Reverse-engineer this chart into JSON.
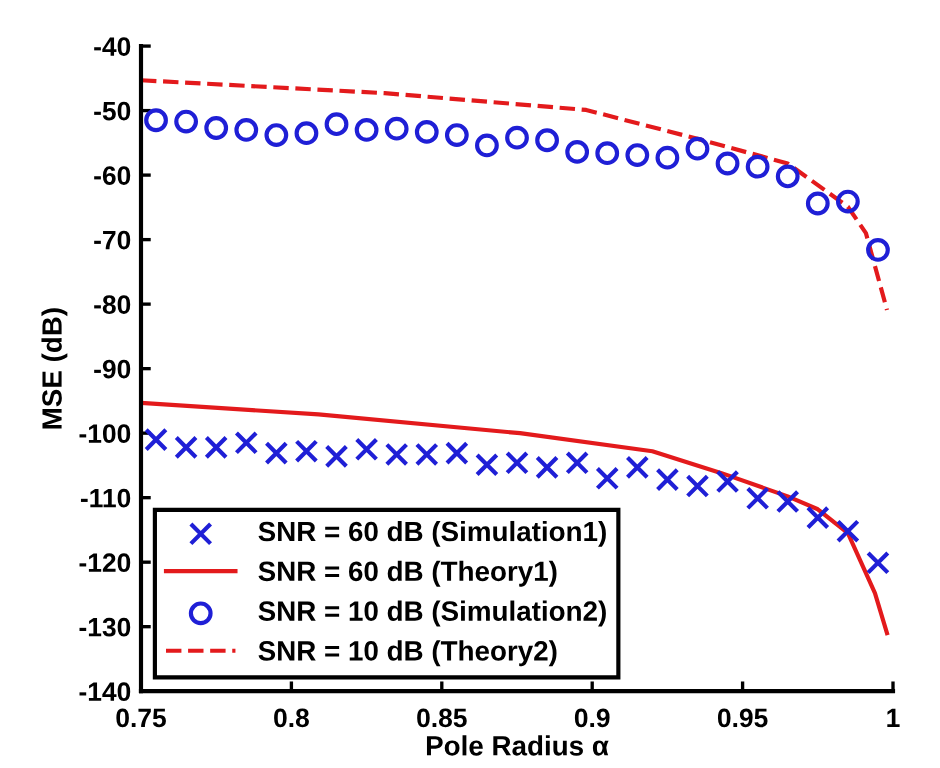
{
  "chart_data": {
    "type": "line",
    "xlabel": "Pole Radius α",
    "ylabel": "MSE (dB)",
    "xlim": [
      0.75,
      1
    ],
    "xticks": [
      0.75,
      0.8,
      0.85,
      0.9,
      0.95,
      1
    ],
    "ylim": [
      -140,
      -40
    ],
    "yticks": [
      -140,
      -130,
      -120,
      -110,
      -100,
      -90,
      -80,
      -70,
      -60,
      -50,
      -40
    ],
    "grid": false,
    "legend": "bottom left",
    "series": [
      {
        "name": "SNR = 60 dB (Simulation1)",
        "type": "scatter",
        "marker": "cross",
        "color": "#1f1fd6",
        "x": [
          0.755,
          0.765,
          0.775,
          0.785,
          0.795,
          0.805,
          0.815,
          0.825,
          0.835,
          0.845,
          0.855,
          0.865,
          0.875,
          0.885,
          0.895,
          0.905,
          0.915,
          0.925,
          0.935,
          0.945,
          0.955,
          0.965,
          0.975,
          0.985,
          0.995
        ],
        "values": [
          -101.0,
          -102.2,
          -102.2,
          -101.5,
          -103.1,
          -102.8,
          -103.6,
          -102.5,
          -103.3,
          -103.3,
          -103.1,
          -104.9,
          -104.6,
          -105.3,
          -104.6,
          -107.0,
          -105.3,
          -107.2,
          -108.2,
          -107.5,
          -110.1,
          -110.6,
          -113.1,
          -115.2,
          -120.1
        ]
      },
      {
        "name": "SNR = 60 dB (Theory1)",
        "line_style": "solid",
        "color": "#e31a1c",
        "x": [
          0.75,
          0.809,
          0.876,
          0.92,
          0.943,
          0.965,
          0.975,
          0.985,
          0.994,
          0.998
        ],
        "values": [
          -95.3,
          -97.1,
          -100.0,
          -102.8,
          -106.2,
          -109.8,
          -111.8,
          -115.5,
          -124.8,
          -131.0
        ]
      },
      {
        "name": "SNR = 10 dB (Simulation2)",
        "type": "scatter",
        "marker": "circle",
        "color": "#1f1fd6",
        "x": [
          0.755,
          0.765,
          0.775,
          0.785,
          0.795,
          0.805,
          0.815,
          0.825,
          0.835,
          0.845,
          0.855,
          0.865,
          0.875,
          0.885,
          0.895,
          0.905,
          0.915,
          0.925,
          0.935,
          0.945,
          0.955,
          0.965,
          0.975,
          0.985,
          0.995
        ],
        "values": [
          -51.5,
          -51.7,
          -52.7,
          -53.0,
          -53.8,
          -53.5,
          -52.1,
          -53.0,
          -52.8,
          -53.3,
          -53.8,
          -55.4,
          -54.2,
          -54.6,
          -56.4,
          -56.6,
          -56.9,
          -57.3,
          -55.9,
          -58.2,
          -58.7,
          -60.2,
          -64.4,
          -64.1,
          -71.6
        ]
      },
      {
        "name": "SNR = 10 dB (Theory2)",
        "line_style": "dashed",
        "color": "#e31a1c",
        "x": [
          0.75,
          0.831,
          0.898,
          0.936,
          0.965,
          0.985,
          0.991,
          0.998
        ],
        "values": [
          -45.3,
          -47.3,
          -49.9,
          -54.5,
          -58.2,
          -64.9,
          -69.0,
          -80.9
        ]
      }
    ]
  }
}
